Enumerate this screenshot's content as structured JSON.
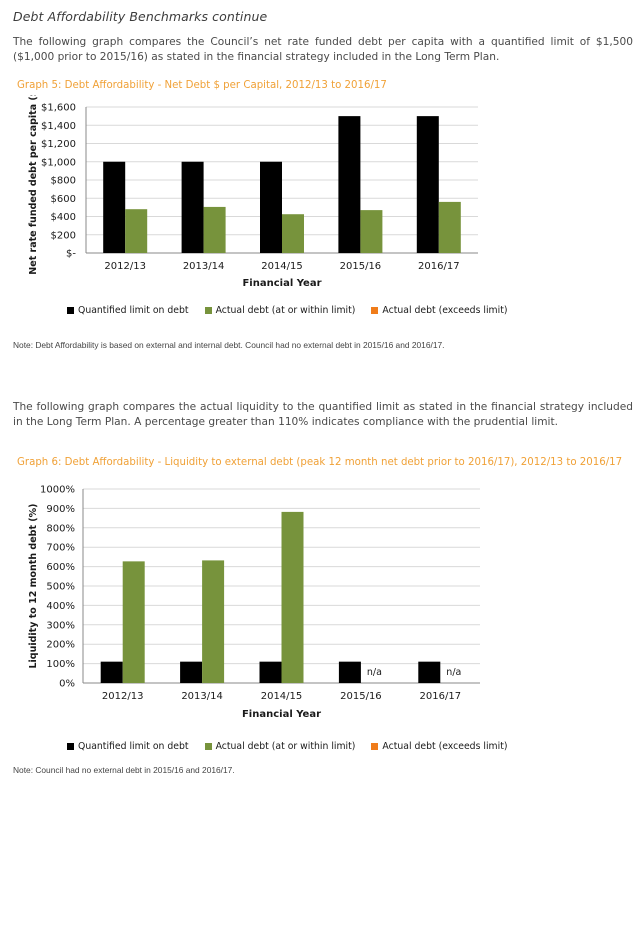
{
  "page": {
    "heading": "Debt Affordability Benchmarks continue",
    "intro_1": "The following graph compares the Council’s net rate funded debt per capita with a quantified limit of $1,500 ($1,000 prior to 2015/16) as stated in the financial strategy included in the Long Term Plan.",
    "graph5_title": "Graph 5: Debt Affordability - Net Debt $ per Capital, 2012/13 to 2016/17",
    "note_1": "Note:  Debt Affordability is based on external and internal debt. Council had no external debt in 2015/16 and 2016/17.",
    "intro_2": "The following graph compares the actual liquidity to the quantified limit as stated in the financial strategy included in the Long Term Plan. A percentage greater than 110% indicates compliance with the prudential limit.",
    "graph6_title": "Graph 6: Debt Affordability - Liquidity to external debt (peak 12 month net debt prior to 2016/17), 2012/13 to 2016/17",
    "note_2": "Note:  Council had no external debt in 2015/16 and 2016/17."
  },
  "colors": {
    "limit": "#000000",
    "actual": "#77933c",
    "exceeds": "#f07c1a",
    "grid": "#d9d9d9"
  },
  "legend": {
    "limit": "Quantified limit on debt",
    "actual": "Actual debt (at or within limit)",
    "exceeds": "Actual debt (exceeds limit)"
  },
  "chart_data": [
    {
      "type": "bar",
      "categories": [
        "2012/13",
        "2013/14",
        "2014/15",
        "2015/16",
        "2016/17"
      ],
      "series": [
        {
          "name": "Quantified limit on debt",
          "values": [
            1000,
            1000,
            1000,
            1500,
            1500
          ]
        },
        {
          "name": "Actual debt (at or within limit)",
          "values": [
            480,
            505,
            425,
            470,
            560
          ]
        },
        {
          "name": "Actual debt (exceeds limit)",
          "values": [
            0,
            0,
            0,
            0,
            0
          ]
        }
      ],
      "xlabel": "Financial Year",
      "ylabel": "Net rate funded debt per capita ($)",
      "ylim": [
        0,
        1600
      ],
      "yticks": [
        0,
        200,
        400,
        600,
        800,
        1000,
        1200,
        1400,
        1600
      ],
      "ytick_labels": [
        "$-",
        "$200",
        "$400",
        "$600",
        "$800",
        "$1,000",
        "$1,200",
        "$1,400",
        "$1,600"
      ],
      "annotations": [],
      "grid": true,
      "legend_position": "bottom"
    },
    {
      "type": "bar",
      "categories": [
        "2012/13",
        "2013/14",
        "2014/15",
        "2015/16",
        "2016/17"
      ],
      "series": [
        {
          "name": "Quantified limit on debt",
          "values": [
            110,
            110,
            110,
            110,
            110
          ]
        },
        {
          "name": "Actual debt (at or within limit)",
          "values": [
            627,
            632,
            882,
            null,
            null
          ]
        },
        {
          "name": "Actual debt (exceeds limit)",
          "values": [
            0,
            0,
            0,
            0,
            0
          ]
        }
      ],
      "xlabel": "Financial Year",
      "ylabel": "Liquidity to 12 month debt (%)",
      "ylim": [
        0,
        1000
      ],
      "yticks": [
        0,
        100,
        200,
        300,
        400,
        500,
        600,
        700,
        800,
        900,
        1000
      ],
      "ytick_labels": [
        "0%",
        "100%",
        "200%",
        "300%",
        "400%",
        "500%",
        "600%",
        "700%",
        "800%",
        "900%",
        "1000%"
      ],
      "annotations": [
        "",
        "",
        "",
        "n/a",
        "n/a"
      ],
      "grid": true,
      "legend_position": "bottom"
    }
  ]
}
